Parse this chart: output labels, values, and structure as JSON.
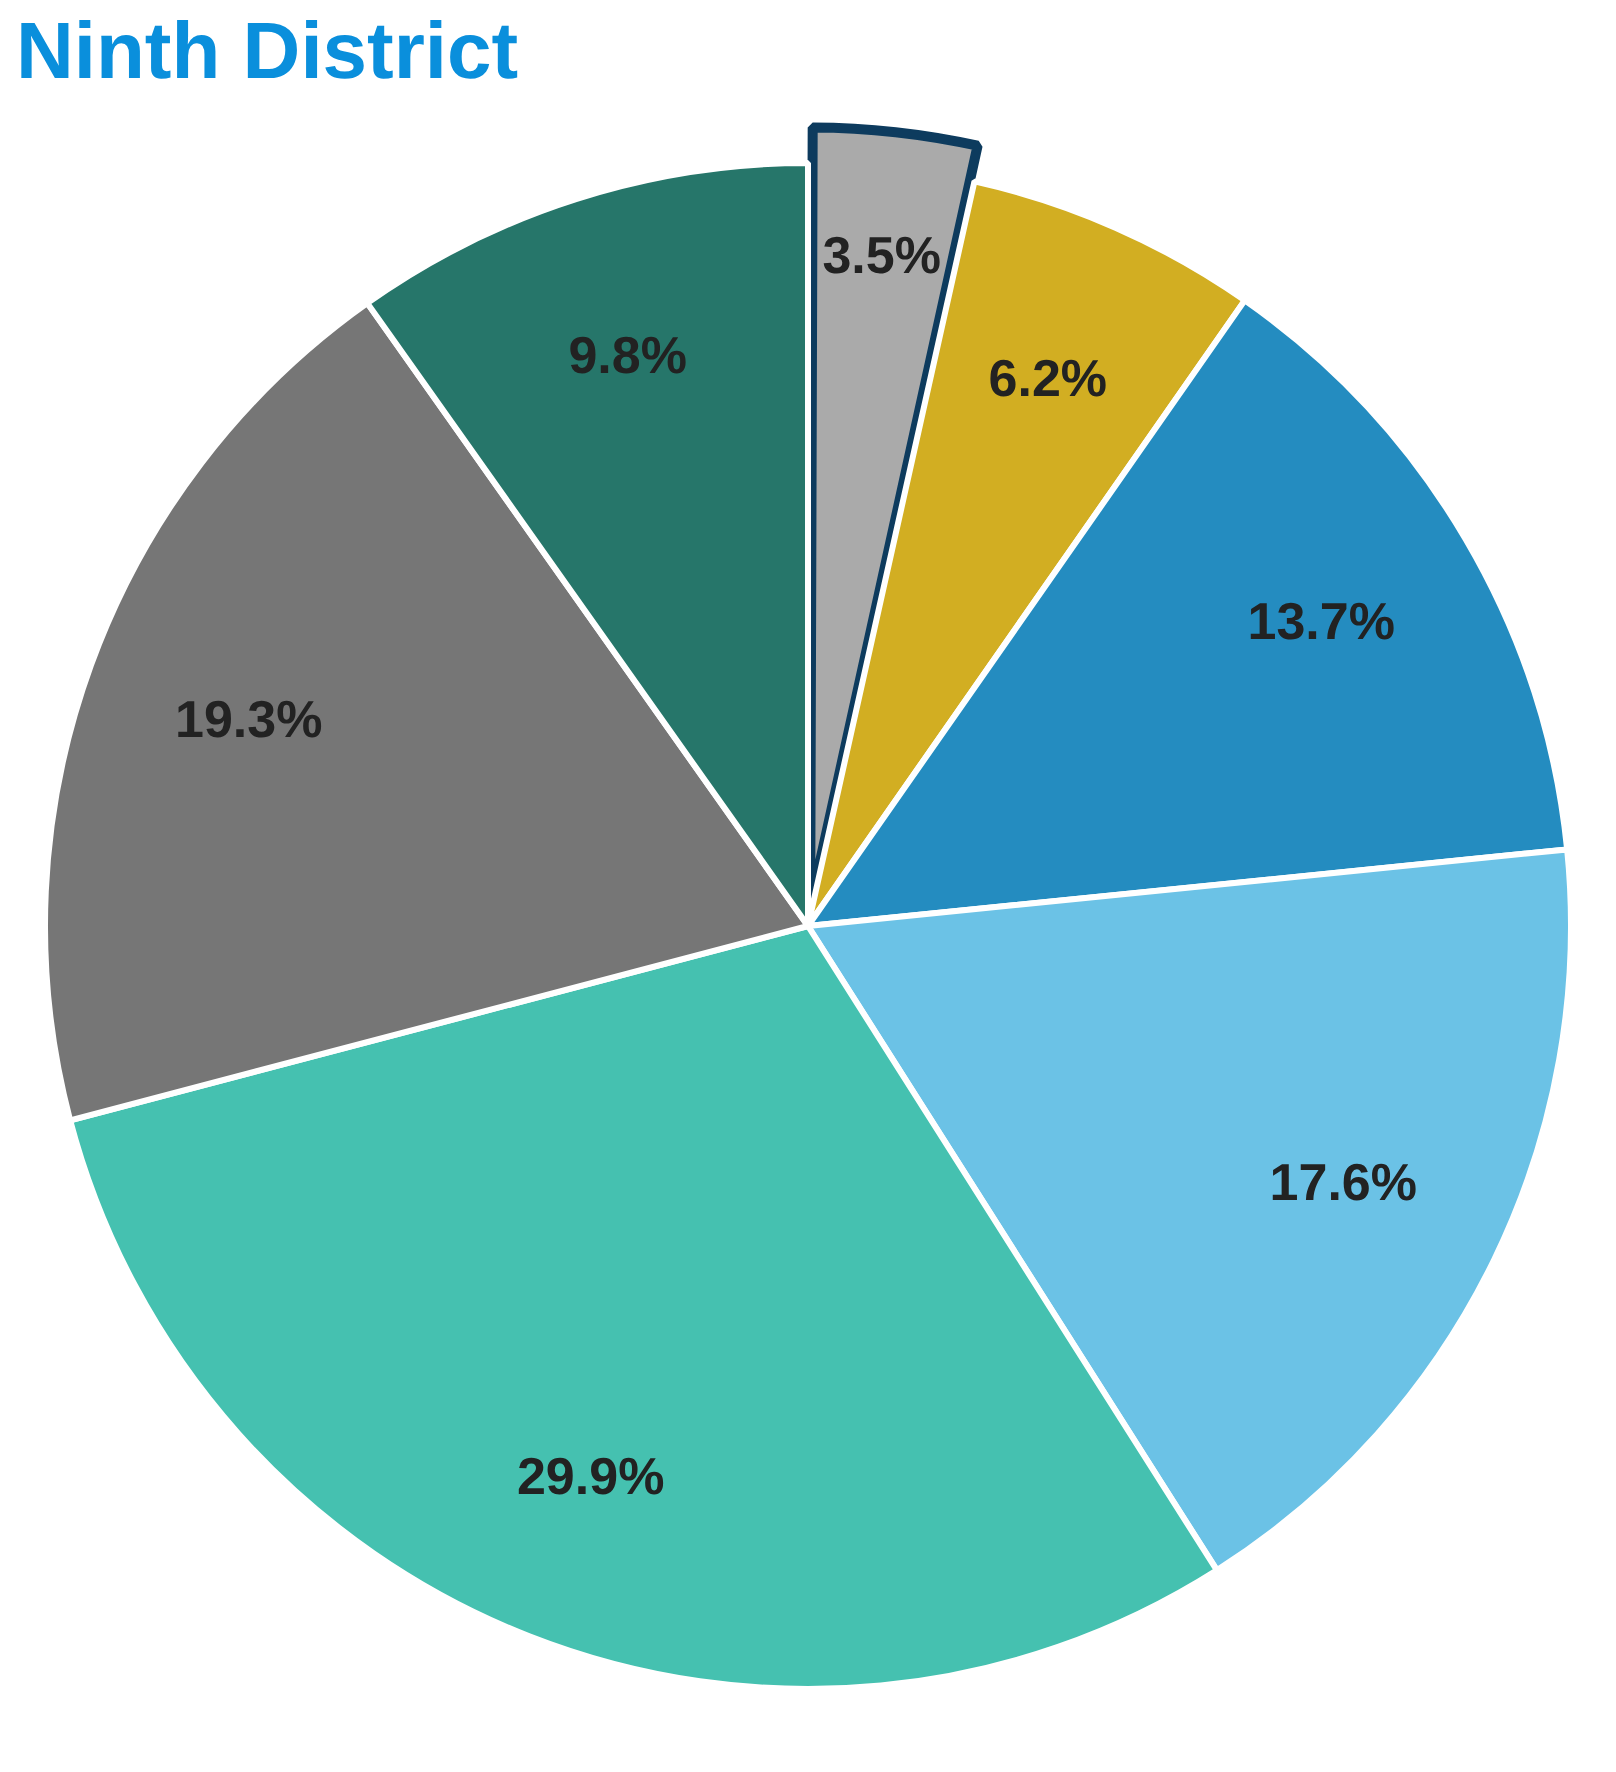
{
  "chart_data": {
    "type": "pie",
    "title": "Ninth District",
    "categories": [
      null,
      null,
      null,
      null,
      null,
      null,
      null
    ],
    "values": [
      3.5,
      6.2,
      13.7,
      17.6,
      29.9,
      19.3,
      9.8
    ],
    "colors": [
      "#aaaaaa",
      "#d2ae22",
      "#248cc0",
      "#6bc2e6",
      "#45c1b0",
      "#767676",
      "#26766a"
    ],
    "value_labels": [
      "3.5%",
      "6.2%",
      "13.7%",
      "17.6%",
      "29.9%",
      "19.3%",
      "9.8%"
    ]
  }
}
